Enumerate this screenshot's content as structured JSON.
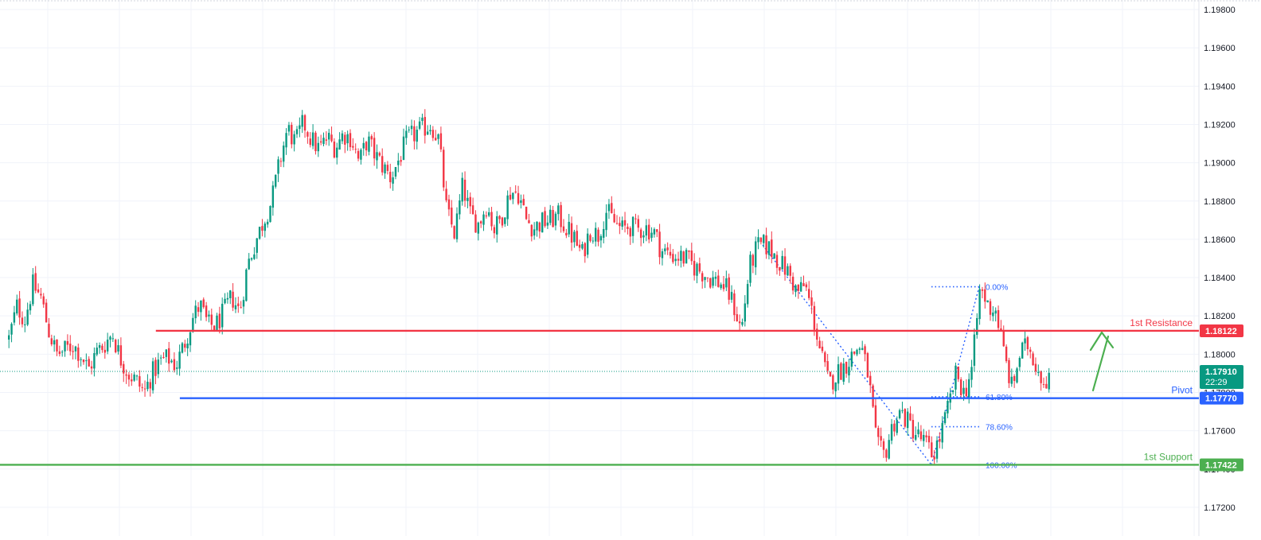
{
  "chart_data": {
    "type": "candlestick",
    "instrument": "",
    "y_axis": {
      "min": 1.1705,
      "max": 1.1985,
      "ticks": [
        "1.17200",
        "1.17400",
        "1.17600",
        "1.17800",
        "1.18000",
        "1.18200",
        "1.18400",
        "1.18600",
        "1.18800",
        "1.19000",
        "1.19200",
        "1.19400",
        "1.19600",
        "1.19800"
      ]
    },
    "grid": true,
    "candle_colors": {
      "up": "#089981",
      "down": "#f23645"
    },
    "current_price": {
      "value": 1.1791,
      "label": "1.17910",
      "countdown": "22:29",
      "color": "#089981"
    },
    "levels": [
      {
        "name": "1st Resistance",
        "value": 1.18122,
        "label": "1.18122",
        "color": "#f23645",
        "start_fraction": 0.13
      },
      {
        "name": "Pivot",
        "value": 1.1777,
        "label": "1.17770",
        "color": "#2962ff",
        "start_fraction": 0.15
      },
      {
        "name": "1st Support",
        "value": 1.17422,
        "label": "1.17422",
        "color": "#4caf50",
        "start_fraction": 0.0
      }
    ],
    "fibonacci": {
      "high": 1.18352,
      "low": 1.17422,
      "color": "#2962ff",
      "levels": [
        {
          "ratio": 0.0,
          "label": "0.00%"
        },
        {
          "ratio": 0.618,
          "label": "61.80%"
        },
        {
          "ratio": 0.786,
          "label": "78.60%"
        },
        {
          "ratio": 1.0,
          "label": "100.00%"
        }
      ]
    },
    "price_path": [
      [
        0,
        1.1792
      ],
      [
        10,
        1.1808
      ],
      [
        20,
        1.1825
      ],
      [
        30,
        1.1818
      ],
      [
        40,
        1.1836
      ],
      [
        50,
        1.183
      ],
      [
        60,
        1.1812
      ],
      [
        70,
        1.18
      ],
      [
        80,
        1.1802
      ],
      [
        90,
        1.1805
      ],
      [
        100,
        1.18
      ],
      [
        110,
        1.1792
      ],
      [
        120,
        1.1801
      ],
      [
        130,
        1.1805
      ],
      [
        140,
        1.1811
      ],
      [
        150,
        1.1798
      ],
      [
        160,
        1.179
      ],
      [
        170,
        1.1786
      ],
      [
        180,
        1.178
      ],
      [
        190,
        1.179
      ],
      [
        200,
        1.1796
      ],
      [
        210,
        1.1798
      ],
      [
        220,
        1.1794
      ],
      [
        230,
        1.1805
      ],
      [
        240,
        1.1818
      ],
      [
        250,
        1.1826
      ],
      [
        260,
        1.1815
      ],
      [
        270,
        1.1815
      ],
      [
        280,
        1.1822
      ],
      [
        290,
        1.183
      ],
      [
        300,
        1.1822
      ],
      [
        310,
        1.1847
      ],
      [
        320,
        1.1859
      ],
      [
        330,
        1.187
      ],
      [
        340,
        1.188
      ],
      [
        350,
        1.19
      ],
      [
        360,
        1.1918
      ],
      [
        370,
        1.191
      ],
      [
        380,
        1.1921
      ],
      [
        390,
        1.1912
      ],
      [
        400,
        1.1907
      ],
      [
        410,
        1.1913
      ],
      [
        420,
        1.1908
      ],
      [
        430,
        1.1915
      ],
      [
        440,
        1.1913
      ],
      [
        450,
        1.19
      ],
      [
        460,
        1.1912
      ],
      [
        470,
        1.1904
      ],
      [
        480,
        1.1898
      ],
      [
        490,
        1.1892
      ],
      [
        500,
        1.1902
      ],
      [
        510,
        1.1912
      ],
      [
        520,
        1.1915
      ],
      [
        530,
        1.1918
      ],
      [
        540,
        1.192
      ],
      [
        550,
        1.1912
      ],
      [
        560,
        1.1874
      ],
      [
        570,
        1.1863
      ],
      [
        580,
        1.1888
      ],
      [
        590,
        1.1872
      ],
      [
        600,
        1.1868
      ],
      [
        610,
        1.1878
      ],
      [
        620,
        1.1865
      ],
      [
        630,
        1.1873
      ],
      [
        640,
        1.1885
      ],
      [
        650,
        1.1884
      ],
      [
        660,
        1.187
      ],
      [
        670,
        1.1866
      ],
      [
        680,
        1.1869
      ],
      [
        690,
        1.187
      ],
      [
        700,
        1.1872
      ],
      [
        710,
        1.1866
      ],
      [
        720,
        1.186
      ],
      [
        730,
        1.1852
      ],
      [
        740,
        1.1865
      ],
      [
        750,
        1.1862
      ],
      [
        760,
        1.1875
      ],
      [
        770,
        1.1869
      ],
      [
        780,
        1.1865
      ],
      [
        790,
        1.1867
      ],
      [
        800,
        1.1865
      ],
      [
        810,
        1.1866
      ],
      [
        820,
        1.1864
      ],
      [
        830,
        1.1854
      ],
      [
        840,
        1.1852
      ],
      [
        850,
        1.1851
      ],
      [
        860,
        1.185
      ],
      [
        870,
        1.1846
      ],
      [
        880,
        1.1843
      ],
      [
        890,
        1.184
      ],
      [
        900,
        1.1838
      ],
      [
        910,
        1.1835
      ],
      [
        920,
        1.1826
      ],
      [
        930,
        1.1812
      ],
      [
        940,
        1.1845
      ],
      [
        950,
        1.1856
      ],
      [
        960,
        1.1857
      ],
      [
        970,
        1.1853
      ],
      [
        980,
        1.1847
      ],
      [
        990,
        1.1842
      ],
      [
        1000,
        1.1832
      ],
      [
        1010,
        1.1836
      ],
      [
        1020,
        1.182
      ],
      [
        1030,
        1.18
      ],
      [
        1040,
        1.1784
      ],
      [
        1050,
        1.179
      ],
      [
        1060,
        1.1794
      ],
      [
        1070,
        1.18
      ],
      [
        1080,
        1.1805
      ],
      [
        1090,
        1.1788
      ],
      [
        1100,
        1.1752
      ],
      [
        1110,
        1.1747
      ],
      [
        1120,
        1.1763
      ],
      [
        1130,
        1.177
      ],
      [
        1140,
        1.1764
      ],
      [
        1150,
        1.1758
      ],
      [
        1160,
        1.1754
      ],
      [
        1170,
        1.1747
      ],
      [
        1180,
        1.1757
      ],
      [
        1190,
        1.1772
      ],
      [
        1200,
        1.179
      ],
      [
        1210,
        1.1779
      ],
      [
        1220,
        1.1793
      ],
      [
        1230,
        1.1835
      ],
      [
        1240,
        1.1825
      ],
      [
        1250,
        1.1823
      ],
      [
        1260,
        1.18
      ],
      [
        1270,
        1.1782
      ],
      [
        1280,
        1.18
      ],
      [
        1290,
        1.1805
      ],
      [
        1300,
        1.1795
      ],
      [
        1310,
        1.1786
      ],
      [
        1320,
        1.1791
      ]
    ]
  }
}
